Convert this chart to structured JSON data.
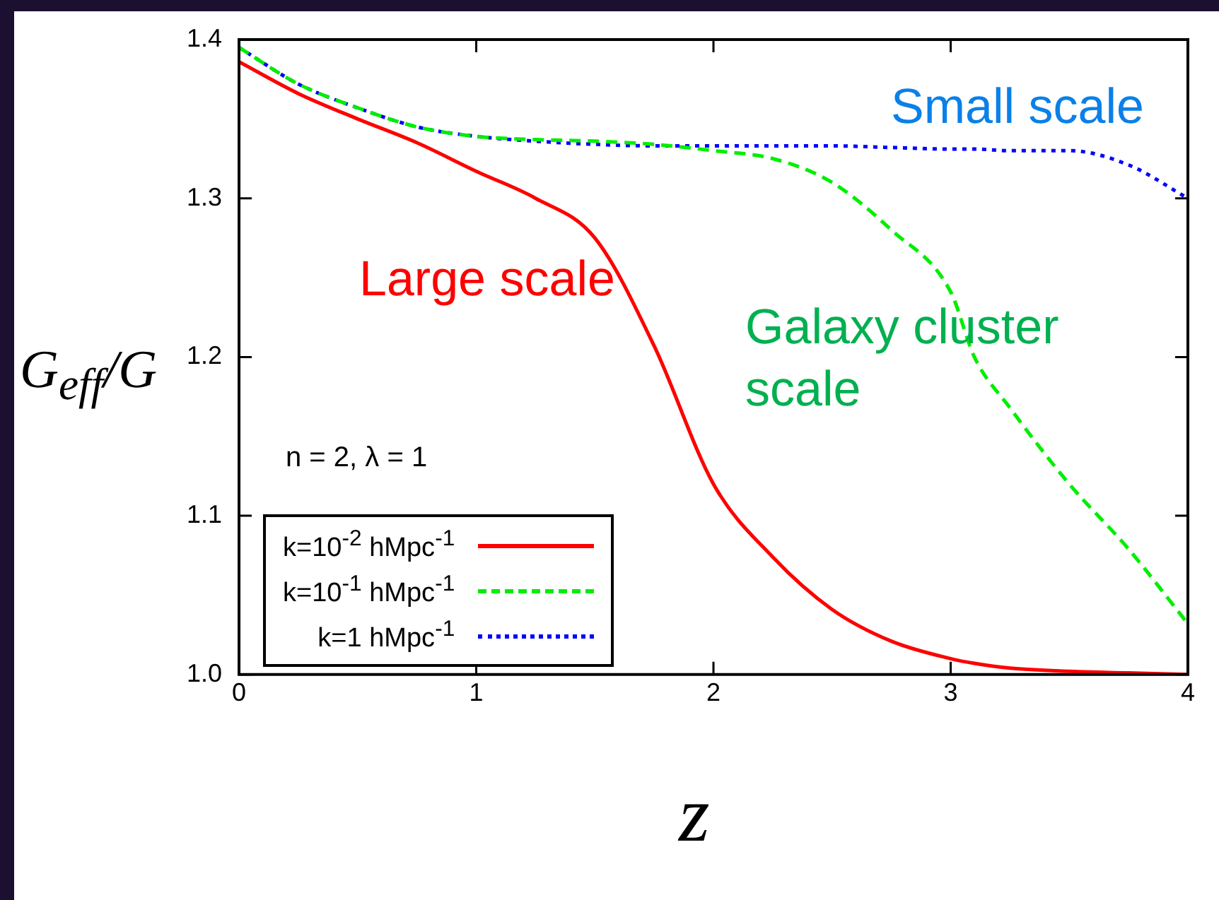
{
  "chart_data": {
    "type": "line",
    "xlabel": "z",
    "ylabel": "G$_{eff}$/G",
    "x": [
      0,
      0.25,
      0.5,
      0.75,
      1,
      1.25,
      1.5,
      1.75,
      2,
      2.25,
      2.5,
      2.75,
      3,
      3.1,
      3.25,
      3.5,
      3.75,
      4
    ],
    "series": [
      {
        "name": "k=10$^{-2}$ hMpc$^{-1}$",
        "color": "#ff0000",
        "line_style": "solid",
        "values": [
          1.386,
          1.366,
          1.35,
          1.335,
          1.317,
          1.3,
          1.275,
          1.207,
          1.12,
          1.074,
          1.041,
          1.021,
          1.01,
          1.007,
          1.004,
          1.002,
          1.001,
          1.0
        ]
      },
      {
        "name": "k=10$^{-1}$ hMpc$^{-1}$",
        "color": "#00ee00",
        "line_style": "dashed",
        "values": [
          1.395,
          1.372,
          1.357,
          1.345,
          1.339,
          1.337,
          1.336,
          1.334,
          1.33,
          1.325,
          1.31,
          1.28,
          1.241,
          1.2,
          1.168,
          1.12,
          1.079,
          1.032
        ]
      },
      {
        "name": "k=1 hMpc$^{-1}$",
        "color": "#0000ff",
        "line_style": "dotted",
        "values": [
          1.395,
          1.372,
          1.357,
          1.345,
          1.339,
          1.336,
          1.334,
          1.333,
          1.333,
          1.333,
          1.333,
          1.332,
          1.331,
          1.331,
          1.33,
          1.33,
          1.321,
          1.3
        ]
      }
    ],
    "xlim": [
      0,
      4
    ],
    "xticks": [
      0,
      1,
      2,
      3,
      4
    ],
    "ylim": [
      1.0,
      1.4
    ],
    "yticks": [
      {
        "value": 1.0,
        "label": "1.0"
      },
      {
        "value": 1.1,
        "label": "1.1"
      },
      {
        "value": 1.2,
        "label": "1.2"
      },
      {
        "value": 1.3,
        "label": "1.3"
      },
      {
        "value": 1.4,
        "label": "1.4"
      }
    ],
    "grid": false,
    "legend": "bottom left",
    "marker": "none",
    "annotations": [
      "Large scale",
      "Galaxy cluster\nscale",
      "Small scale",
      "n = 2, λ = 1"
    ]
  }
}
